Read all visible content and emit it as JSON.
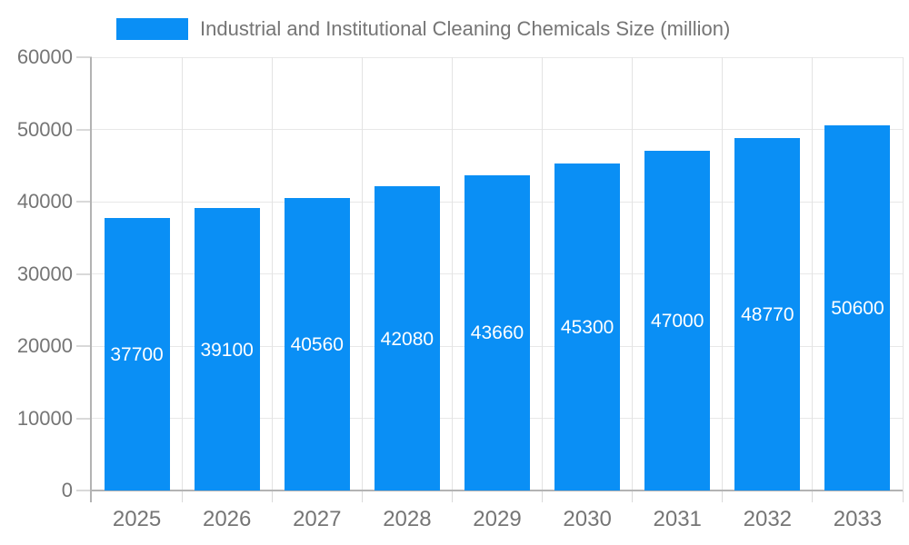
{
  "legend": {
    "label": "Industrial and Institutional Cleaning Chemicals Size (million)",
    "swatch_color": "#0a8ff5"
  },
  "chart_data": {
    "type": "bar",
    "title": "Industrial and Institutional Cleaning Chemicals Size (million)",
    "categories": [
      "2025",
      "2026",
      "2027",
      "2028",
      "2029",
      "2030",
      "2031",
      "2032",
      "2033"
    ],
    "values": [
      37700,
      39100,
      40560,
      42080,
      43660,
      45300,
      47000,
      48770,
      50600
    ],
    "value_labels": [
      "37700",
      "39100",
      "40560",
      "42080",
      "43660",
      "45300",
      "47000",
      "48770",
      "50600"
    ],
    "xlabel": "",
    "ylabel": "",
    "ylim": [
      0,
      60000
    ],
    "ytick_step": 10000,
    "yticks": [
      0,
      10000,
      20000,
      30000,
      40000,
      50000,
      60000
    ],
    "ytick_labels": [
      "0",
      "10000",
      "20000",
      "30000",
      "40000",
      "50000",
      "60000"
    ],
    "grid": true,
    "legend_position": "top",
    "bar_color": "#0a8ff5",
    "value_label_color": "#ffffff",
    "axis_color": "#b3b3b3",
    "grid_color": "#e8e8e8",
    "text_color": "#757575"
  }
}
